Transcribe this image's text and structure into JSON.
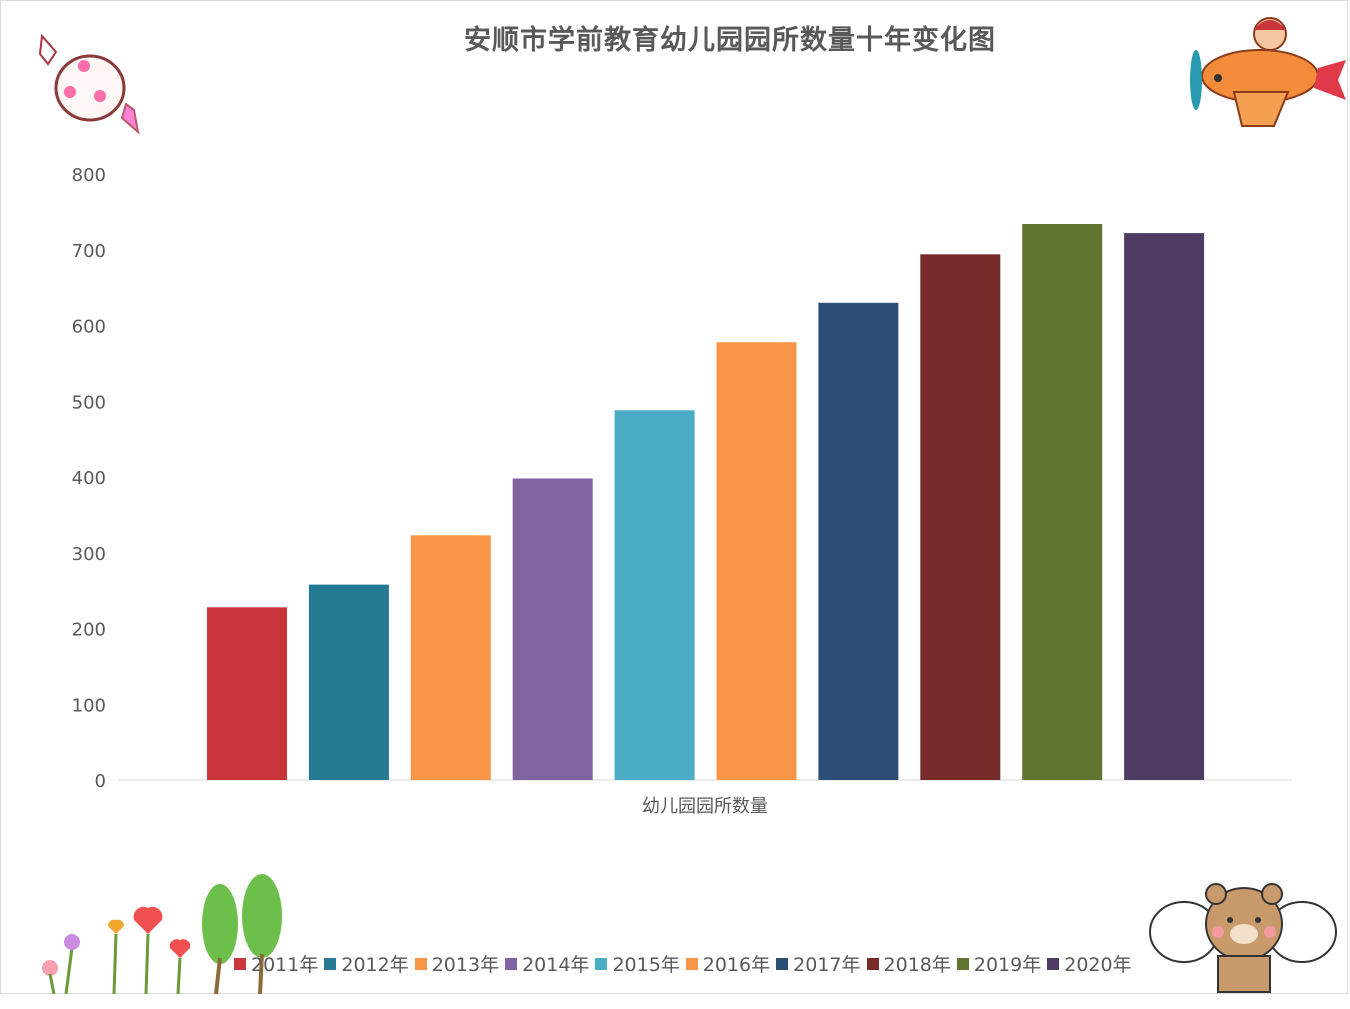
{
  "chart_data": {
    "type": "bar",
    "title": "安顺市学前教育幼儿园园所数量十年变化图",
    "xlabel": "幼儿园园所数量",
    "ylabel": "",
    "ylim": [
      0,
      800
    ],
    "yticks": [
      0,
      100,
      200,
      300,
      400,
      500,
      600,
      700,
      800
    ],
    "grid": false,
    "legend_position": "bottom",
    "categories": [
      "幼儿园园所数量"
    ],
    "series": [
      {
        "name": "2011年",
        "values": [
          228
        ],
        "color": "#c9353a"
      },
      {
        "name": "2012年",
        "values": [
          258
        ],
        "color": "#247a92"
      },
      {
        "name": "2013年",
        "values": [
          323
        ],
        "color": "#f79647"
      },
      {
        "name": "2014年",
        "values": [
          398
        ],
        "color": "#8064a2"
      },
      {
        "name": "2015年",
        "values": [
          488
        ],
        "color": "#4bacc6"
      },
      {
        "name": "2016年",
        "values": [
          578
        ],
        "color": "#f79647"
      },
      {
        "name": "2017年",
        "values": [
          630
        ],
        "color": "#2c4d75"
      },
      {
        "name": "2018年",
        "values": [
          694
        ],
        "color": "#772c2a"
      },
      {
        "name": "2019年",
        "values": [
          734
        ],
        "color": "#5f7530"
      },
      {
        "name": "2020年",
        "values": [
          722
        ],
        "color": "#4d3b62"
      }
    ]
  },
  "decorations": {
    "top_left": "candy-icon",
    "top_right": "airplane-pilot-icon",
    "bottom_left": "flowers-trees-icon",
    "bottom_right": "bears-icon"
  }
}
